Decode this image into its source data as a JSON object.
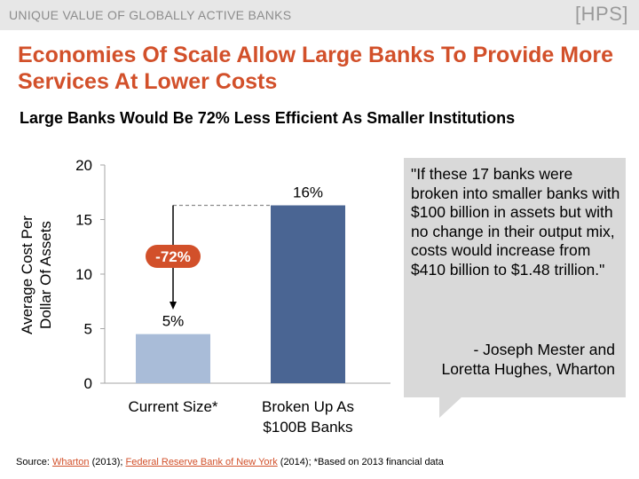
{
  "header": {
    "section_label": "UNIQUE VALUE OF GLOBALLY ACTIVE  BANKS",
    "logo_text": "[HPS]"
  },
  "slide": {
    "title": "Economies Of Scale Allow Large Banks To Provide More Services At Lower Costs",
    "subtitle": "Large Banks Would Be 72% Less Efficient As Smaller Institutions"
  },
  "chart_data": {
    "type": "bar",
    "categories": [
      [
        "Current Size*"
      ],
      [
        "Broken Up As",
        "$100B Banks"
      ]
    ],
    "values": [
      4.5,
      16.3
    ],
    "data_labels": [
      "5%",
      "16%"
    ],
    "ylabel_lines": [
      "Average Cost Per",
      "Dollar Of Assets"
    ],
    "ylim": [
      0,
      20
    ],
    "yticks": [
      0,
      5,
      10,
      15,
      20
    ],
    "bar_colors": [
      "#a9bcd8",
      "#4a6593"
    ],
    "annotation": {
      "label": "-72%",
      "color": "#d2502a"
    },
    "grid": false
  },
  "quote": {
    "text": "\"If these 17 banks were broken into smaller banks with $100 billion in assets but with no change in their output mix, costs would increase from $410 billion to $1.48 trillion.\"",
    "attribution_line1": "- Joseph Mester and",
    "attribution_line2": "Loretta Hughes, Wharton"
  },
  "source": {
    "prefix": "Source: ",
    "link1": "Wharton",
    "mid1": " (2013); ",
    "link2": "Federal Reserve Bank of New York",
    "suffix": " (2014); *Based on 2013 financial data"
  }
}
